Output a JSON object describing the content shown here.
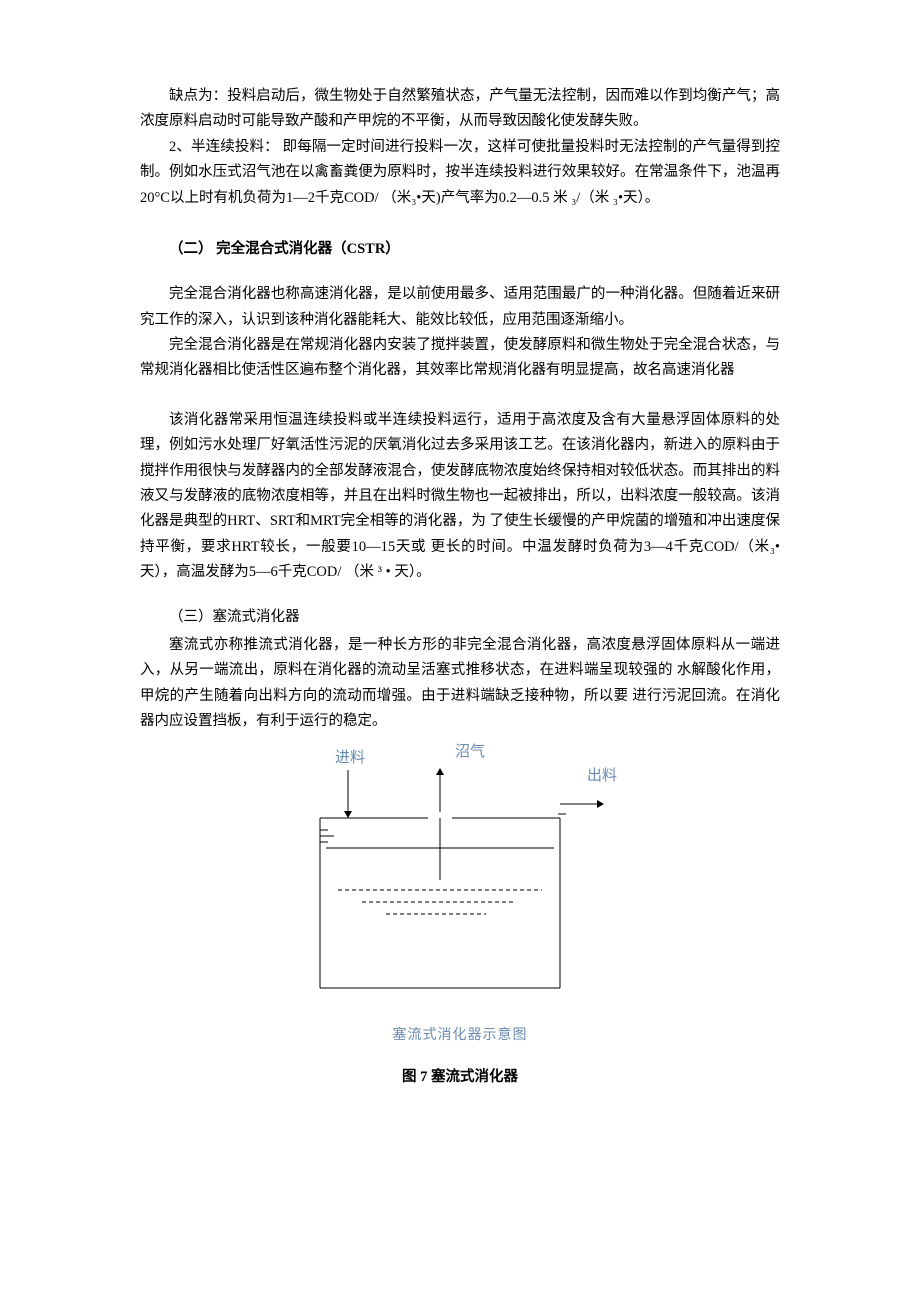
{
  "sec1": {
    "p1": "缺点为：投料启动后，微生物处于自然繁殖状态，产气量无法控制，因而难以作到均衡产气；高浓度原料启动时可能导致产酸和产甲烷的不平衡，从而导致因酸化使发酵失败。",
    "p2": "2、半连续投料： 即每隔一定时间进行投料一次，这样可使批量投料时无法控制的产气量得到控制。例如水压式沼气池在以禽畜粪便为原料时，按半连续投料进行效果较好。在常温条件下，池温再20°C以上时有机负荷为1—2千克COD/ （米₃•天)产气率为0.2—0.5 米 ₃/（米 ₃•天）。"
  },
  "sec2": {
    "title": "（二） 完全混合式消化器（CSTR）",
    "p1": "完全混合消化器也称高速消化器，是以前使用最多、适用范围最广的一种消化器。但随着近来研究工作的深入，认识到该种消化器能耗大、能效比较低，应用范围逐渐缩小。",
    "p2": "完全混合消化器是在常规消化器内安装了搅拌装置，使发酵原料和微生物处于完全混合状态，与常规消化器相比使活性区遍布整个消化器，其效率比常规消化器有明显提高，故名高速消化器",
    "p3": "该消化器常采用恒温连续投料或半连续投料运行，适用于高浓度及含有大量悬浮固体原料的处理，例如污水处理厂好氧活性污泥的厌氧消化过去多采用该工艺。在该消化器内，新进入的原料由于搅拌作用很快与发酵器内的全部发酵液混合，使发酵底物浓度始终保持相对较低状态。而其排出的料液又与发酵液的底物浓度相等，并且在出料时微生物也一起被排出，所以，出料浓度一般较高。该消化器是典型的HRT、SRT和MRT完全相等的消化器，为 了使生长缓慢的产甲烷菌的增殖和冲出速度保持平衡，要求HRT较长，一般要10—15天或 更长的时间。中温发酵时负荷为3—4千克COD/（米₃•天），高温发酵为5—6千克COD/ （米 ³ • 天）。"
  },
  "sec3": {
    "title": "（三）塞流式消化器",
    "p1": "塞流式亦称推流式消化器，是一种长方形的非完全混合消化器，高浓度悬浮固体原料从一端进入，从另一端流出，原料在消化器的流动呈活塞式推移状态，在进料端呈现较强的 水解酸化作用，甲烷的产生随着向出料方向的流动而增强。由于进料端缺乏接种物，所以要 进行污泥回流。在消化器内应设置挡板，有利于运行的稳定。"
  },
  "diagram": {
    "labels": {
      "inlet": "进料",
      "gas": "沼气",
      "outlet": "出料"
    },
    "caption_inner": "塞流式消化器示意图",
    "caption_fig": "图 7 塞流式消化器",
    "colors": {
      "stroke": "#000000",
      "label": "#6a8bb0"
    },
    "stroke_width": 1,
    "dash_pattern": "4 3"
  }
}
